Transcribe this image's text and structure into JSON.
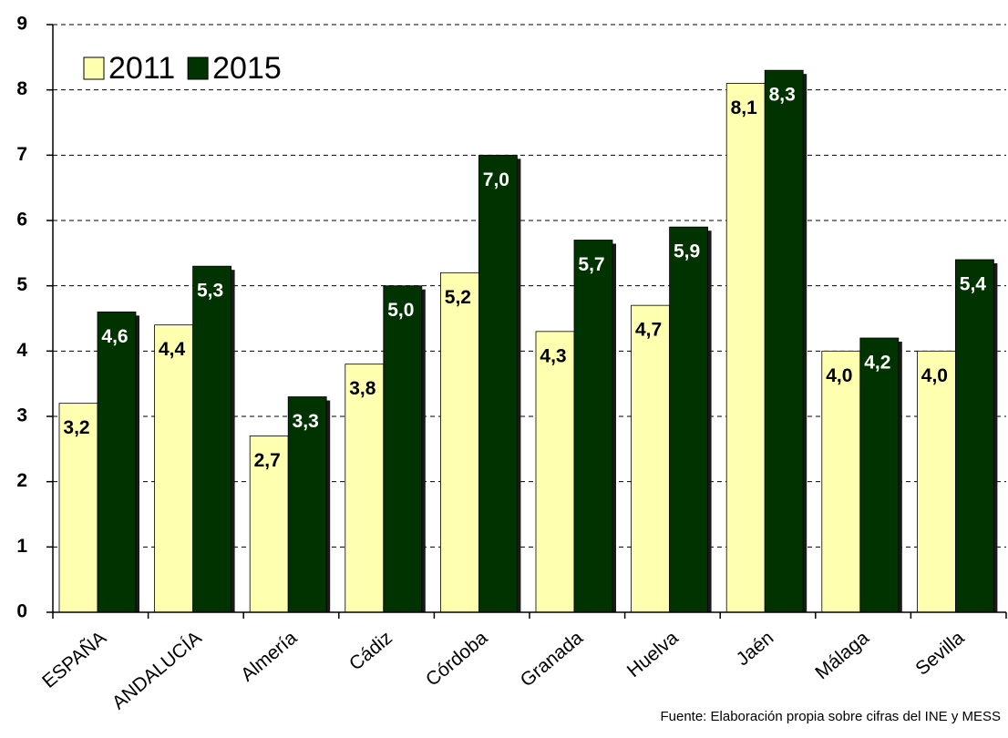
{
  "chart_data": {
    "type": "bar",
    "categories": [
      "ESPAÑA",
      "ANDALUCÍA",
      "Almería",
      "Cádiz",
      "Córdoba",
      "Granada",
      "Huelva",
      "Jaén",
      "Málaga",
      "Sevilla"
    ],
    "series": [
      {
        "name": "2011",
        "color": "#ffffb0",
        "label_color": "#000000",
        "values": [
          3.2,
          4.4,
          2.7,
          3.8,
          5.2,
          4.3,
          4.7,
          8.1,
          4.0,
          4.0
        ],
        "value_labels": [
          "3,2",
          "4,4",
          "2,7",
          "3,8",
          "5,2",
          "4,3",
          "4,7",
          "8,1",
          "4,0",
          "4,0"
        ]
      },
      {
        "name": "2015",
        "color": "#003300",
        "label_color": "#ffffff",
        "values": [
          4.6,
          5.3,
          3.3,
          5.0,
          7.0,
          5.7,
          5.9,
          8.3,
          4.2,
          5.4
        ],
        "value_labels": [
          "4,6",
          "5,3",
          "3,3",
          "5,0",
          "7,0",
          "5,7",
          "5,9",
          "8,3",
          "4,2",
          "5,4"
        ]
      }
    ],
    "ylim": [
      0,
      9
    ],
    "yticks": [
      0,
      1,
      2,
      3,
      4,
      5,
      6,
      7,
      8,
      9
    ],
    "grid": true,
    "legend": "top-left",
    "source": "Fuente: Elaboración propia sobre cifras del INE y  MESS"
  }
}
